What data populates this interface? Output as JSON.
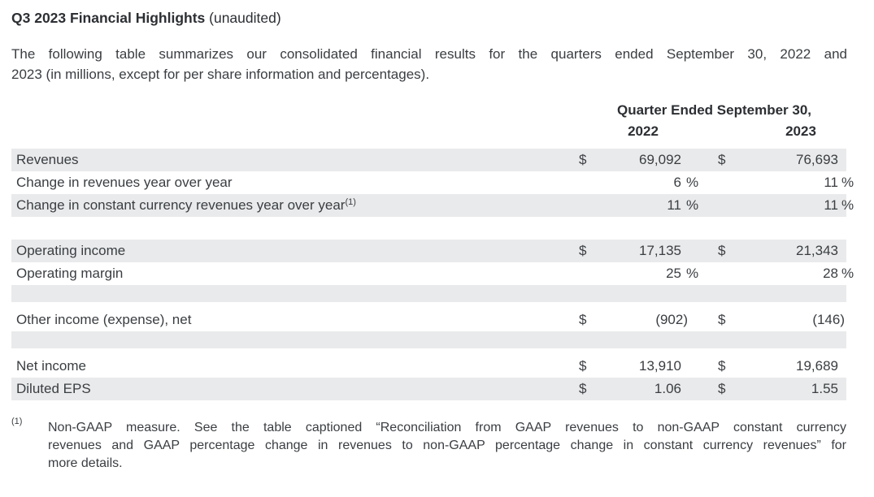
{
  "page": {
    "title_bold": "Q3 2023 Financial Highlights",
    "title_regular": " (unaudited)",
    "intro_lines": [
      "The following table summarizes our consolidated financial results for the quarters ended September 30, 2022 and",
      "2023 (in millions, except for per share information and percentages)."
    ]
  },
  "table": {
    "header": "Quarter Ended September 30,",
    "col_years": [
      "2022",
      "2023"
    ],
    "shade_color": "#e9eaeb",
    "rows": [
      {
        "label": "Revenues",
        "d1": "$",
        "a1": "69,092",
        "d2": "$",
        "a2": "76,693",
        "bg": "gray"
      },
      {
        "label": "Change in revenues year over year",
        "a1": "6",
        "p1": "%",
        "a2": "11",
        "p2": "%",
        "bg": "white"
      },
      {
        "label": "Change in constant currency revenues year over year",
        "sup": "(1)",
        "a1": "11",
        "p1": "%",
        "a2": "11",
        "p2": "%",
        "bg": "gray"
      },
      {
        "spacer": "white-28"
      },
      {
        "label": "Operating income",
        "d1": "$",
        "a1": "17,135",
        "d2": "$",
        "a2": "21,343",
        "bg": "gray"
      },
      {
        "label": "Operating margin",
        "a1": "25",
        "p1": "%",
        "a2": "28",
        "p2": "%",
        "bg": "white"
      },
      {
        "spacer": "gray-21"
      },
      {
        "spacer": "white-8"
      },
      {
        "label": "Other income (expense), net",
        "d1": "$",
        "a1": "(902)",
        "d2": "$",
        "a2": "(146)",
        "bg": "white",
        "neg": true
      },
      {
        "spacer": "gray-21"
      },
      {
        "spacer": "white-8"
      },
      {
        "label": "Net income",
        "d1": "$",
        "a1": "13,910",
        "d2": "$",
        "a2": "19,689",
        "bg": "white"
      },
      {
        "label": "Diluted EPS",
        "d1": "$",
        "a1": "1.06",
        "d2": "$",
        "a2": "1.55",
        "bg": "gray"
      }
    ]
  },
  "footnote": {
    "marker": "(1)",
    "lines": [
      "Non-GAAP measure. See the table captioned “Reconciliation from GAAP revenues to non-GAAP constant currency",
      "revenues and GAAP percentage change in revenues to non-GAAP percentage change in constant currency revenues” for",
      "more details."
    ]
  }
}
